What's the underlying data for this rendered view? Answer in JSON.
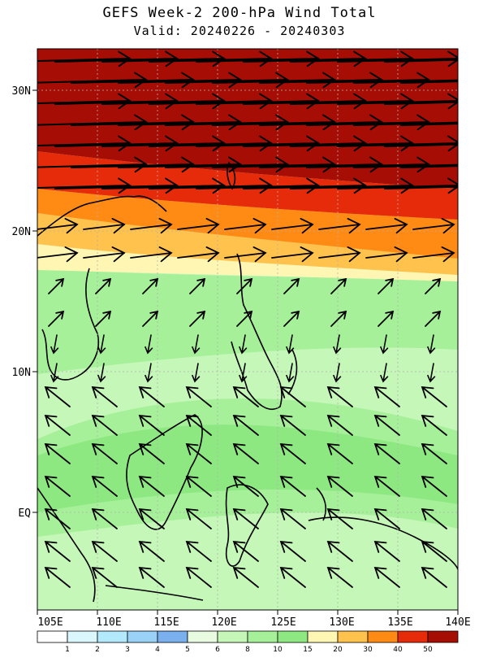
{
  "title": "GEFS Week-2 200-hPa Wind Total",
  "subtitle": "Valid: 20240226 - 20240303",
  "lon_labels": [
    "105E",
    "110E",
    "115E",
    "120E",
    "125E",
    "130E",
    "135E",
    "140E"
  ],
  "lat_labels": [
    "30N",
    "20N",
    "10N",
    "EQ"
  ],
  "colorbar": {
    "thresholds": [
      "1",
      "2",
      "3",
      "4",
      "5",
      "6",
      "8",
      "10",
      "15",
      "20",
      "30",
      "40",
      "50"
    ],
    "colors": [
      "#ffffff",
      "#d9f7fd",
      "#b2eafc",
      "#99d1f7",
      "#7ab0ee",
      "#e8fbe0",
      "#c4f7b8",
      "#a6f099",
      "#8ee882",
      "#fff6b3",
      "#ffc24d",
      "#ff8a14",
      "#e52b0a",
      "#a50d05"
    ]
  },
  "map": {
    "lon_range": [
      105,
      140
    ],
    "lat_range": [
      -7,
      33
    ],
    "grid": true,
    "field": "200-hPa total wind speed (m/s) with wind vectors"
  }
}
